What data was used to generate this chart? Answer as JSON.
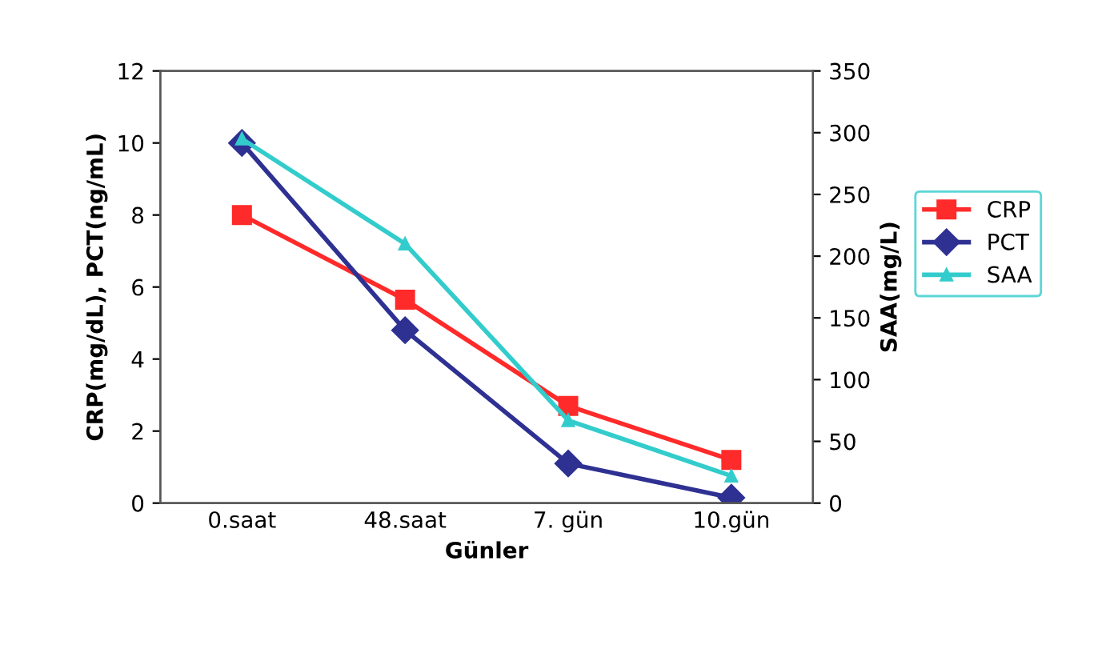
{
  "chart_data": {
    "type": "line",
    "xlabel": "Günler",
    "ylabel": "CRP(mg/dL), PCT(ng/mL)",
    "y2label": "SAA(mg/L)",
    "categories": [
      "0.saat",
      "48.saat",
      "7. gün",
      "10.gün"
    ],
    "series": [
      {
        "name": "CRP",
        "color": "#ff2a2a",
        "marker": "square",
        "values": [
          8.0,
          5.65,
          2.7,
          1.2
        ]
      },
      {
        "name": "PCT",
        "color": "#2e3192",
        "marker": "diamond",
        "values": [
          10.0,
          4.8,
          1.1,
          0.15
        ]
      },
      {
        "name": "SAA",
        "color": "#33cccc",
        "marker": "triangle",
        "axis": "y2",
        "values": [
          295,
          210,
          67,
          22
        ]
      }
    ],
    "ylim": [
      0,
      12
    ],
    "yticks": [
      0,
      2,
      4,
      6,
      8,
      10,
      12
    ],
    "y2lim": [
      0,
      350
    ],
    "y2ticks": [
      0,
      50,
      100,
      150,
      200,
      250,
      300,
      350
    ],
    "grid": false,
    "legend": "right"
  }
}
